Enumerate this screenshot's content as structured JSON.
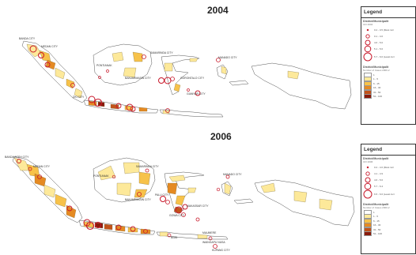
{
  "maps": [
    {
      "title": "2004",
      "legend": {
        "title": "Legend",
        "circle_heading": "District/Municipalit",
        "circle_subheading": "CFI 2004",
        "circle_items": [
          "0.2 - 0.5 (Most incr",
          "0.1 - 4.0",
          "4.6 - 5.0",
          "5.1 - 5.6",
          "5.7 - 6.0 (Least incr"
        ],
        "fill_heading": "District/Municipalit",
        "fill_subheading": "Number of Cases 2000-2",
        "fill_items": [
          "1",
          "1 - 5",
          "6 - 15",
          "16 - 30",
          "31 - 50",
          "51 - 100"
        ]
      },
      "labels": {
        "l1": "BANDA CITY",
        "l2": "MEDAN CITY",
        "l3": "BANJARMASIN CITY",
        "l4": "MANADO CITY",
        "l5": "GORONTALO CITY",
        "l6": "DKI CITY",
        "l7": "GIANYAR CITY",
        "l8": "SAMARINDA CITY",
        "l9": "PONTIANAK"
      }
    },
    {
      "title": "2006",
      "legend": {
        "title": "Legend",
        "circle_heading": "District/Municipalit",
        "circle_subheading": "CFI 2006",
        "circle_items": [
          "0.2 - 4.0 (Most incr",
          "4.1 - 4.9",
          "4.6 - 5.6",
          "5.7 - 6.4",
          "6.5 - 6.6 (Least incr"
        ],
        "fill_heading": "District/Municipalit",
        "fill_subheading": "Number of Cases 2000-2",
        "fill_items": [
          "1",
          "1 - 5",
          "6 - 15",
          "16 - 30",
          "31 - 50",
          "51 - 100"
        ]
      },
      "labels": {
        "l1": "BANDA ACEH CITY",
        "l2": "MEDAN CITY",
        "l3": "PONTIANAK",
        "l4": "SAMARINDA CITY",
        "l5": "MANADO CITY",
        "l6": "BANJARMASIN CITY",
        "l7": "PALU CITY",
        "l8": "GOWA CITY",
        "l9": "MAKASSAR CITY",
        "l10": "BIMA",
        "l11": "MAUMERE",
        "l12": "WAINGAPU NUSA",
        "l13": "KUPANG CITY"
      }
    }
  ],
  "colors": {
    "fill_levels": [
      "#ffffff",
      "#fde99a",
      "#f7c24a",
      "#e58a22",
      "#c2531a",
      "#8a1a0a"
    ],
    "circle": "#c8182a",
    "outline": "#555555",
    "island_base": "#ffffff"
  }
}
